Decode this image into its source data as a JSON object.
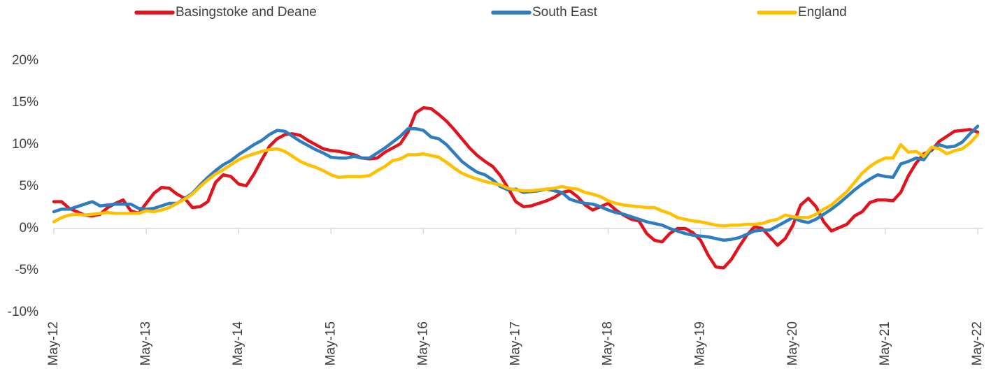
{
  "chart_data": {
    "type": "line",
    "legend": "top",
    "categories": [
      "May-12",
      null,
      null,
      null,
      null,
      null,
      null,
      null,
      null,
      null,
      null,
      null,
      "May-13",
      null,
      null,
      null,
      null,
      null,
      null,
      null,
      null,
      null,
      null,
      null,
      "May-14",
      null,
      null,
      null,
      null,
      null,
      null,
      null,
      null,
      null,
      null,
      null,
      "May-15",
      null,
      null,
      null,
      null,
      null,
      null,
      null,
      null,
      null,
      null,
      null,
      "May-16",
      null,
      null,
      null,
      null,
      null,
      null,
      null,
      null,
      null,
      null,
      null,
      "May-17",
      null,
      null,
      null,
      null,
      null,
      null,
      null,
      null,
      null,
      null,
      null,
      "May-18",
      null,
      null,
      null,
      null,
      null,
      null,
      null,
      null,
      null,
      null,
      null,
      "May-19",
      null,
      null,
      null,
      null,
      null,
      null,
      null,
      null,
      null,
      null,
      null,
      "May-20",
      null,
      null,
      null,
      null,
      null,
      null,
      null,
      null,
      null,
      null,
      null,
      "May-21",
      null,
      null,
      null,
      null,
      null,
      null,
      null,
      null,
      null,
      null,
      null,
      "May-22"
    ],
    "ylim": [
      -10,
      20
    ],
    "yticks": [
      {
        "value": -10,
        "label": "-10%"
      },
      {
        "value": -5,
        "label": "-5%"
      },
      {
        "value": 0,
        "label": "0%"
      },
      {
        "value": 5,
        "label": "5%"
      },
      {
        "value": 10,
        "label": "10%"
      },
      {
        "value": 15,
        "label": "15%"
      },
      {
        "value": 20,
        "label": "20%"
      }
    ],
    "series": [
      {
        "name": "Basingstoke and Deane",
        "color": "#e0141e",
        "values": [
          3.2,
          3.2,
          2.4,
          2.0,
          1.6,
          1.5,
          1.7,
          2.5,
          3.0,
          3.4,
          2.1,
          1.8,
          3.0,
          4.2,
          4.9,
          4.8,
          4.1,
          3.6,
          2.5,
          2.6,
          3.2,
          5.5,
          6.4,
          6.2,
          5.3,
          5.1,
          6.5,
          8.2,
          9.8,
          10.7,
          11.2,
          11.3,
          11.1,
          10.5,
          10.0,
          9.5,
          9.3,
          9.2,
          9.0,
          8.8,
          8.4,
          8.3,
          8.4,
          9.1,
          9.6,
          10.1,
          11.5,
          13.8,
          14.4,
          14.3,
          13.6,
          12.8,
          11.8,
          10.7,
          9.6,
          8.7,
          8.0,
          7.4,
          6.3,
          4.8,
          3.2,
          2.6,
          2.7,
          3.0,
          3.3,
          3.7,
          4.3,
          4.5,
          3.8,
          2.8,
          2.2,
          2.6,
          3.0,
          2.2,
          1.6,
          1.1,
          0.9,
          -0.6,
          -1.4,
          -1.6,
          -0.6,
          0.0,
          0.0,
          -0.5,
          -1.4,
          -3.2,
          -4.6,
          -4.7,
          -3.7,
          -2.2,
          -0.8,
          0.2,
          0.0,
          -1.0,
          -2.0,
          -1.2,
          0.4,
          2.8,
          3.6,
          2.6,
          0.8,
          -0.3,
          0.1,
          0.5,
          1.5,
          2.0,
          3.1,
          3.4,
          3.4,
          3.3,
          4.3,
          6.3,
          7.8,
          8.9,
          9.3,
          10.4,
          11.0,
          11.6,
          11.7,
          11.8,
          11.5
        ]
      },
      {
        "name": "South East",
        "color": "#2e7ebf",
        "values": [
          2.0,
          2.3,
          2.3,
          2.6,
          2.9,
          3.2,
          2.7,
          2.8,
          2.9,
          2.9,
          2.9,
          2.4,
          2.3,
          2.4,
          2.7,
          3.0,
          3.0,
          3.6,
          4.2,
          5.2,
          6.1,
          6.9,
          7.6,
          8.1,
          8.8,
          9.4,
          10.0,
          10.5,
          11.2,
          11.7,
          11.6,
          11.0,
          10.4,
          9.9,
          9.4,
          9.0,
          8.5,
          8.4,
          8.4,
          8.6,
          8.4,
          8.4,
          9.0,
          9.6,
          10.3,
          11.0,
          11.9,
          11.9,
          11.7,
          10.9,
          10.7,
          10.0,
          9.0,
          8.0,
          7.3,
          6.7,
          6.4,
          5.8,
          5.0,
          4.6,
          4.7,
          4.3,
          4.4,
          4.5,
          4.7,
          4.5,
          4.3,
          3.5,
          3.2,
          3.0,
          2.9,
          2.6,
          2.2,
          1.9,
          1.7,
          1.4,
          1.1,
          0.8,
          0.6,
          0.4,
          0.0,
          -0.3,
          -0.6,
          -0.8,
          -0.9,
          -1.0,
          -1.2,
          -1.4,
          -1.3,
          -1.1,
          -0.7,
          -0.3,
          -0.2,
          -0.2,
          0.3,
          0.8,
          1.3,
          0.9,
          0.7,
          1.1,
          1.7,
          2.3,
          3.0,
          3.8,
          4.6,
          5.3,
          5.9,
          6.4,
          6.2,
          6.1,
          7.7,
          8.0,
          8.4,
          8.2,
          9.5,
          10.0,
          9.7,
          9.8,
          10.3,
          11.3,
          12.2
        ]
      },
      {
        "name": "England",
        "color": "#ffc000",
        "values": [
          0.8,
          1.3,
          1.6,
          1.7,
          1.6,
          1.7,
          1.8,
          1.9,
          1.8,
          1.8,
          1.8,
          1.8,
          2.1,
          2.0,
          2.2,
          2.5,
          3.0,
          3.5,
          4.1,
          5.0,
          5.8,
          6.5,
          7.0,
          7.6,
          8.2,
          8.6,
          8.9,
          9.2,
          9.4,
          9.5,
          9.2,
          8.6,
          8.0,
          7.6,
          7.3,
          6.9,
          6.4,
          6.1,
          6.2,
          6.2,
          6.2,
          6.3,
          6.9,
          7.4,
          8.1,
          8.3,
          8.8,
          8.8,
          8.9,
          8.7,
          8.5,
          7.9,
          7.2,
          6.6,
          6.2,
          5.9,
          5.6,
          5.4,
          5.2,
          4.8,
          4.6,
          4.5,
          4.5,
          4.6,
          4.7,
          4.8,
          5.0,
          4.8,
          4.7,
          4.3,
          4.1,
          3.8,
          3.3,
          3.0,
          2.8,
          2.7,
          2.6,
          2.5,
          2.5,
          2.1,
          1.8,
          1.3,
          1.1,
          0.9,
          0.8,
          0.6,
          0.4,
          0.3,
          0.4,
          0.4,
          0.5,
          0.5,
          0.6,
          0.9,
          1.1,
          1.6,
          1.4,
          1.3,
          1.3,
          1.7,
          2.3,
          2.8,
          3.6,
          4.4,
          5.5,
          6.6,
          7.4,
          8.0,
          8.4,
          8.4,
          10.0,
          9.1,
          9.2,
          8.6,
          9.7,
          9.5,
          8.9,
          9.3,
          9.5,
          10.2,
          11.2
        ]
      }
    ]
  }
}
